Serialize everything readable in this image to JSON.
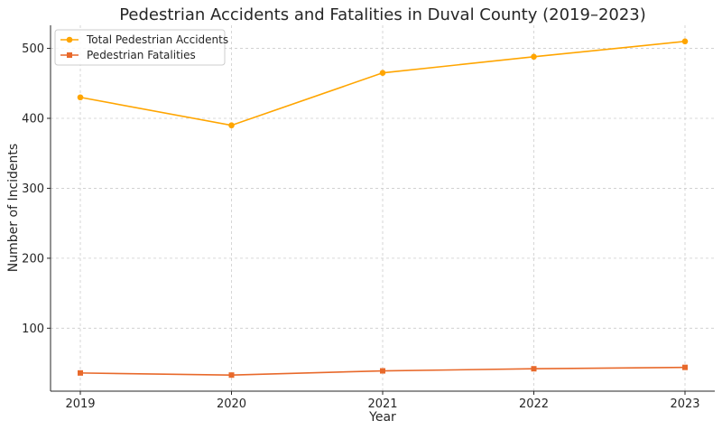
{
  "chart_data": {
    "type": "line",
    "title": "Pedestrian Accidents and Fatalities in Duval County (2019–2023)",
    "xlabel": "Year",
    "ylabel": "Number of Incidents",
    "categories": [
      "2019",
      "2020",
      "2021",
      "2022",
      "2023"
    ],
    "yticks": [
      "100",
      "200",
      "300",
      "400",
      "500"
    ],
    "ylim": [
      10,
      533
    ],
    "grid": true,
    "legend_position": "top-left",
    "series": [
      {
        "name": "Total Pedestrian Accidents",
        "values": [
          430,
          390,
          465,
          488,
          510
        ],
        "color": "#FFA500",
        "marker": "circle"
      },
      {
        "name": "Pedestrian Fatalities",
        "values": [
          36,
          33,
          39,
          42,
          44
        ],
        "color": "#E8692B",
        "marker": "square"
      }
    ]
  }
}
